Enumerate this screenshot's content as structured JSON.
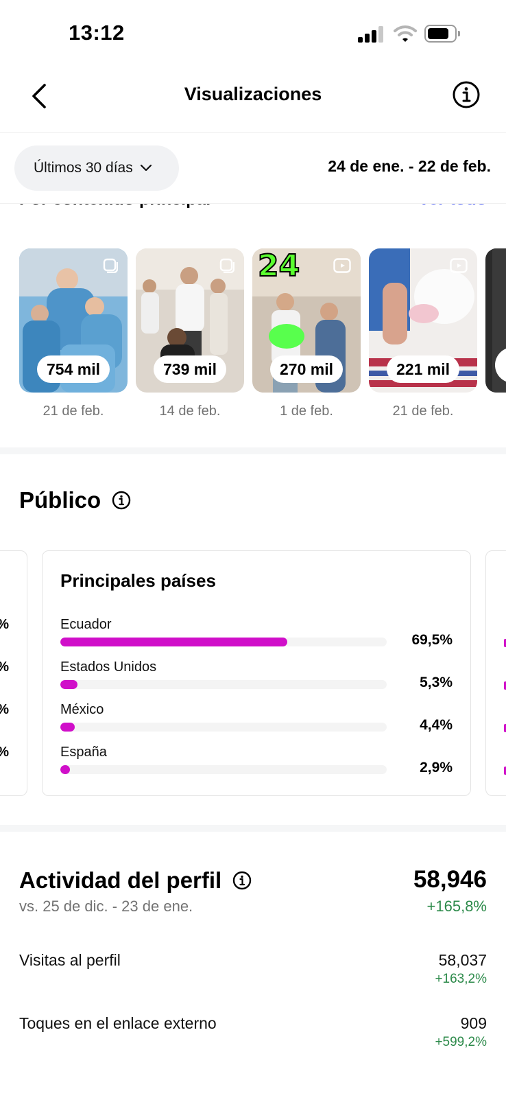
{
  "status_bar": {
    "time": "13:12"
  },
  "header": {
    "title": "Visualizaciones"
  },
  "filter": {
    "period_label": "Últimos 30 días",
    "date_range": "24 de ene. - 22 de feb."
  },
  "top_content": {
    "section_title": "Por contenido principal",
    "see_all_label": "Ver todo",
    "items": [
      {
        "views": "754 mil",
        "date": "21 de feb."
      },
      {
        "views": "739 mil",
        "date": "14 de feb."
      },
      {
        "views": "270 mil",
        "date": "1 de feb."
      },
      {
        "views": "221 mil",
        "date": "21 de feb."
      }
    ]
  },
  "audience": {
    "title": "Público",
    "countries_card": {
      "title": "Principales países",
      "rows": [
        {
          "name": "Ecuador",
          "percent_label": "69,5%",
          "value": 69.5
        },
        {
          "name": "Estados Unidos",
          "percent_label": "5,3%",
          "value": 5.3
        },
        {
          "name": "México",
          "percent_label": "4,4%",
          "value": 4.4
        },
        {
          "name": "España",
          "percent_label": "2,9%",
          "value": 2.9
        }
      ]
    }
  },
  "profile_activity": {
    "title": "Actividad del perfil",
    "comparison": "vs. 25 de dic. - 23 de ene.",
    "total": "58,946",
    "total_change": "+165,8%",
    "metrics": [
      {
        "label": "Visitas al perfil",
        "value": "58,037",
        "change": "+163,2%"
      },
      {
        "label": "Toques en el enlace externo",
        "value": "909",
        "change": "+599,2%"
      }
    ]
  },
  "colors": {
    "accent": "#d00fc9",
    "positive": "#2c8a4a",
    "link": "#4a5cf0"
  }
}
